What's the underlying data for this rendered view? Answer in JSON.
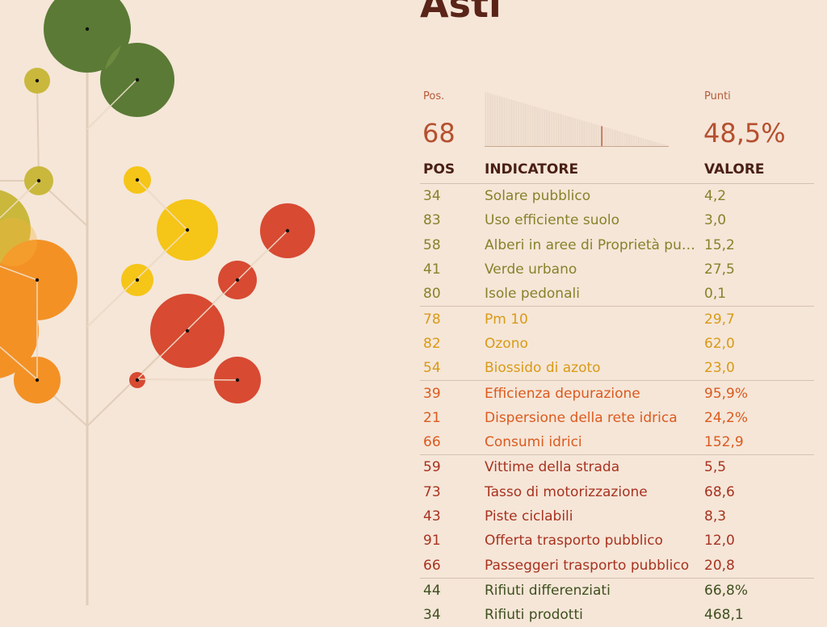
{
  "city": "Asti",
  "summary": {
    "pos_label": "Pos.",
    "pos_value": "68",
    "points_label": "Punti",
    "points_value": "48,5%"
  },
  "table": {
    "headers": {
      "pos": "POS",
      "indicator": "INDICATORE",
      "value": "VALORE"
    },
    "rows": [
      {
        "pos": "34",
        "indicator": "Solare pubblico",
        "value": "4,2",
        "group": "olive"
      },
      {
        "pos": "83",
        "indicator": "Uso efficiente suolo",
        "value": "3,0",
        "group": "olive"
      },
      {
        "pos": "58",
        "indicator": "Alberi in aree di Proprietà pubblica",
        "value": "15,2",
        "group": "olive"
      },
      {
        "pos": "41",
        "indicator": "Verde urbano",
        "value": "27,5",
        "group": "olive"
      },
      {
        "pos": "80",
        "indicator": "Isole pedonali",
        "value": "0,1",
        "group": "olive"
      },
      {
        "pos": "78",
        "indicator": "Pm 10",
        "value": "29,7",
        "group": "yellow"
      },
      {
        "pos": "82",
        "indicator": "Ozono",
        "value": "62,0",
        "group": "yellow"
      },
      {
        "pos": "54",
        "indicator": "Biossido di azoto",
        "value": "23,0",
        "group": "yellow"
      },
      {
        "pos": "39",
        "indicator": "Efficienza depurazione",
        "value": "95,9%",
        "group": "orange"
      },
      {
        "pos": "21",
        "indicator": "Dispersione della rete idrica",
        "value": "24,2%",
        "group": "orange"
      },
      {
        "pos": "66",
        "indicator": "Consumi idrici",
        "value": "152,9",
        "group": "orange"
      },
      {
        "pos": "59",
        "indicator": "Vittime della strada",
        "value": "5,5",
        "group": "red"
      },
      {
        "pos": "73",
        "indicator": "Tasso di motorizzazione",
        "value": "68,6",
        "group": "red"
      },
      {
        "pos": "43",
        "indicator": "Piste ciclabili",
        "value": "8,3",
        "group": "red"
      },
      {
        "pos": "91",
        "indicator": "Offerta trasporto pubblico",
        "value": "12,0",
        "group": "red"
      },
      {
        "pos": "66",
        "indicator": "Passeggeri trasporto pubblico",
        "value": "20,8",
        "group": "red"
      },
      {
        "pos": "44",
        "indicator": "Rifiuti differenziati",
        "value": "66,8%",
        "group": "green"
      },
      {
        "pos": "34",
        "indicator": "Rifiuti prodotti",
        "value": "468,1",
        "group": "green"
      }
    ]
  },
  "colors": {
    "background": "#f5e6d8",
    "title": "#5a2418",
    "olive": "#86822a",
    "yellow": "#d99a16",
    "orange": "#dc5a1e",
    "red": "#a8321f",
    "green": "#3f4f1e",
    "tree_green": "#5a7a35",
    "tree_olive": "#c9b83c",
    "tree_yellow": "#f5c518",
    "tree_orange": "#f39125",
    "tree_red": "#d84a32"
  }
}
